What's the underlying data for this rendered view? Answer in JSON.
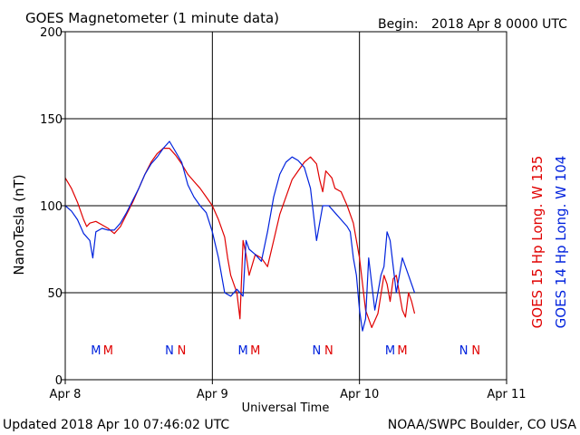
{
  "header": {
    "title": "GOES Magnetometer (1 minute data)",
    "begin_label": "Begin:",
    "begin_value": "2018 Apr 8 0000 UTC"
  },
  "footer": {
    "updated": "Updated 2018 Apr 10 07:46:02 UTC",
    "credit": "NOAA/SWPC Boulder, CO USA"
  },
  "chart_data": {
    "type": "line",
    "title": "GOES Magnetometer (1 minute data)",
    "xlabel": "Universal Time",
    "ylabel": "NanoTesla (nT)",
    "xlim": [
      0,
      72
    ],
    "ylim": [
      0,
      200
    ],
    "x_unit": "hours since 2018 Apr 8 0000 UTC",
    "x_ticks": [
      {
        "value": 0,
        "label": "Apr 8"
      },
      {
        "value": 24,
        "label": "Apr 9"
      },
      {
        "value": 48,
        "label": "Apr 10"
      },
      {
        "value": 72,
        "label": "Apr 11"
      }
    ],
    "y_ticks": [
      0,
      50,
      100,
      150,
      200
    ],
    "grid": true,
    "series": [
      {
        "name": "GOES 15 Hp",
        "legend": "GOES 15 Hp   Long. W 135",
        "color": "#e00000",
        "x": [
          0,
          1,
          2,
          3,
          3.5,
          4,
          5,
          6,
          7,
          8,
          9,
          10,
          11,
          12,
          13,
          14,
          15,
          16,
          17,
          18,
          19,
          20,
          21,
          22,
          23,
          24,
          25,
          26,
          26.5,
          27,
          27.5,
          28,
          28.5,
          29,
          29.5,
          30,
          31,
          32,
          33,
          34,
          35,
          36,
          37,
          38,
          39,
          40,
          41,
          41.5,
          42,
          42.5,
          43,
          43.5,
          44,
          45,
          46,
          47,
          48,
          49,
          50,
          51,
          52,
          52.5,
          53,
          53.5,
          54,
          54.5,
          55,
          55.5,
          56,
          56.5,
          57
        ],
        "y": [
          116,
          110,
          102,
          92,
          88,
          90,
          91,
          89,
          87,
          84,
          88,
          95,
          102,
          110,
          118,
          125,
          130,
          133,
          133,
          129,
          124,
          118,
          114,
          110,
          105,
          100,
          92,
          82,
          70,
          60,
          55,
          50,
          35,
          80,
          72,
          60,
          72,
          70,
          65,
          80,
          95,
          105,
          115,
          120,
          125,
          128,
          124,
          115,
          108,
          120,
          118,
          116,
          110,
          108,
          100,
          90,
          70,
          40,
          30,
          38,
          60,
          55,
          45,
          58,
          60,
          50,
          40,
          36,
          50,
          45,
          38
        ]
      },
      {
        "name": "GOES 14 Hp",
        "legend": "GOES 14 Hp   Long. W 104",
        "color": "#0022dd",
        "x": [
          0,
          1,
          2,
          3,
          4,
          4.5,
          5,
          6,
          7,
          8,
          9,
          10,
          11,
          12,
          13,
          14,
          15,
          16,
          17,
          18,
          19,
          20,
          21,
          22,
          23,
          24,
          25,
          26,
          27,
          28,
          29,
          29.5,
          30,
          31,
          32,
          33,
          34,
          35,
          36,
          37,
          38,
          39,
          40,
          41,
          41.5,
          42,
          43,
          44,
          45,
          46,
          46.5,
          47,
          47.5,
          48,
          48.5,
          49,
          49.5,
          50,
          50.5,
          51,
          51.5,
          52,
          52.5,
          53,
          54,
          55,
          56,
          57
        ],
        "y": [
          100,
          97,
          92,
          84,
          80,
          70,
          85,
          87,
          86,
          86,
          90,
          96,
          103,
          110,
          118,
          124,
          128,
          133,
          137,
          131,
          125,
          112,
          105,
          100,
          96,
          85,
          70,
          50,
          48,
          52,
          48,
          80,
          75,
          72,
          68,
          85,
          105,
          118,
          125,
          128,
          126,
          122,
          110,
          80,
          90,
          100,
          100,
          96,
          92,
          88,
          85,
          70,
          60,
          40,
          28,
          35,
          70,
          55,
          40,
          50,
          60,
          65,
          85,
          80,
          50,
          70,
          60,
          50
        ]
      }
    ],
    "markers": [
      {
        "label": "M",
        "x": 5,
        "color": "#0022dd"
      },
      {
        "label": "M",
        "x": 7,
        "color": "#e00000"
      },
      {
        "label": "N",
        "x": 17,
        "color": "#0022dd"
      },
      {
        "label": "N",
        "x": 19,
        "color": "#e00000"
      },
      {
        "label": "M",
        "x": 29,
        "color": "#0022dd"
      },
      {
        "label": "M",
        "x": 31,
        "color": "#e00000"
      },
      {
        "label": "N",
        "x": 41,
        "color": "#0022dd"
      },
      {
        "label": "N",
        "x": 43,
        "color": "#e00000"
      },
      {
        "label": "M",
        "x": 53,
        "color": "#0022dd"
      },
      {
        "label": "M",
        "x": 55,
        "color": "#e00000"
      },
      {
        "label": "N",
        "x": 65,
        "color": "#0022dd"
      },
      {
        "label": "N",
        "x": 67,
        "color": "#e00000"
      }
    ]
  }
}
